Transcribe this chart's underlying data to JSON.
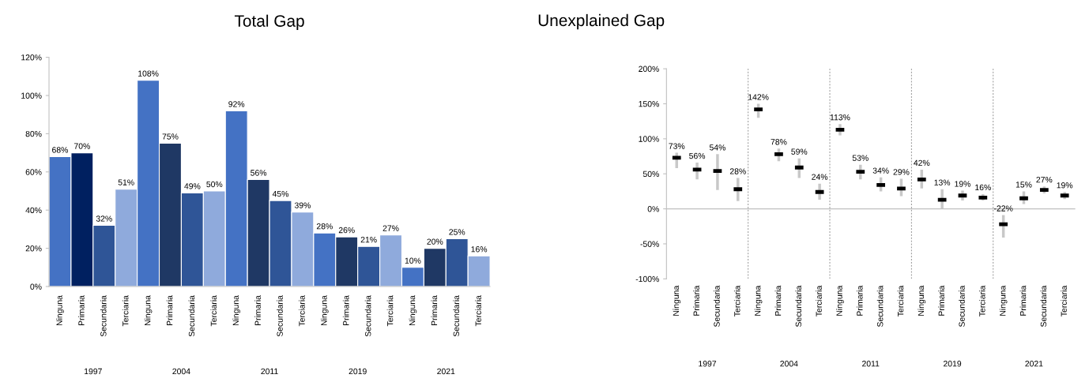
{
  "chart_data": [
    {
      "type": "bar",
      "title": "Total Gap",
      "categories": [
        "Ninguna",
        "Primaria",
        "Secundaria",
        "Terciaria",
        "Ninguna",
        "Primaria",
        "Secundaria",
        "Terciaria",
        "Ninguna",
        "Primaria",
        "Secundaria",
        "Terciaria",
        "Ninguna",
        "Primaria",
        "Secundaria",
        "Terciaria",
        "Ninguna",
        "Primaria",
        "Secundaria",
        "Terciaria"
      ],
      "values": [
        68,
        70,
        32,
        51,
        108,
        75,
        49,
        50,
        92,
        56,
        45,
        39,
        28,
        26,
        21,
        27,
        10,
        20,
        25,
        16
      ],
      "colors": [
        "#4472c4",
        "#002060",
        "#2f5597",
        "#8faadc",
        "#4472c4",
        "#1f3864",
        "#2f5597",
        "#8faadc",
        "#4472c4",
        "#1f3864",
        "#2f5597",
        "#8faadc",
        "#4472c4",
        "#1f3864",
        "#2f5597",
        "#8faadc",
        "#4472c4",
        "#1f3864",
        "#2f5597",
        "#8faadc"
      ],
      "ylim": [
        0,
        120
      ],
      "yticks": [
        {
          "value": 0,
          "label": "0%"
        },
        {
          "value": 20,
          "label": "20%"
        },
        {
          "value": 40,
          "label": "40%"
        },
        {
          "value": 60,
          "label": "60%"
        },
        {
          "value": 80,
          "label": "80%"
        },
        {
          "value": 100,
          "label": "100%"
        },
        {
          "value": 120,
          "label": "120%"
        }
      ],
      "value_labels": [
        "68%",
        "70%",
        "32%",
        "51%",
        "108%",
        "75%",
        "49%",
        "50%",
        "92%",
        "56%",
        "45%",
        "39%",
        "28%",
        "26%",
        "21%",
        "27%",
        "10%",
        "20%",
        "25%",
        "16%"
      ],
      "annotations": [
        "1997",
        "2004",
        "2011",
        "2019",
        "2021"
      ],
      "grid": false,
      "legend": false
    },
    {
      "type": "scatter",
      "title": "Unexplained Gap",
      "categories": [
        "Ninguna",
        "Primaria",
        "Secundaria",
        "Terciaria",
        "Ninguna",
        "Primaria",
        "Secundaria",
        "Terciaria",
        "Ninguna",
        "Primaria",
        "Secundaria",
        "Terciaria",
        "Ninguna",
        "Primaria",
        "Secundaria",
        "Terciaria",
        "Ninguna",
        "Primaria",
        "Secundaria",
        "Terciaria"
      ],
      "series": [
        {
          "color": "#000000",
          "values": [
            73,
            56,
            54,
            28,
            142,
            78,
            59,
            24,
            113,
            53,
            34,
            29,
            42,
            13,
            19,
            16,
            -22,
            15,
            27,
            19
          ],
          "errors": [
            [
              58,
              80
            ],
            [
              42,
              66
            ],
            [
              27,
              78
            ],
            [
              11,
              44
            ],
            [
              130,
              150
            ],
            [
              68,
              86
            ],
            [
              44,
              72
            ],
            [
              13,
              36
            ],
            [
              105,
              121
            ],
            [
              42,
              63
            ],
            [
              25,
              45
            ],
            [
              18,
              43
            ],
            [
              29,
              56
            ],
            [
              0,
              28
            ],
            [
              12,
              26
            ],
            [
              12,
              21
            ],
            [
              -41,
              -9
            ],
            [
              7,
              25
            ],
            [
              22,
              32
            ],
            [
              14,
              24
            ]
          ],
          "value_labels": [
            "73%",
            "56%",
            "54%",
            "28%",
            "142%",
            "78%",
            "59%",
            "24%",
            "113%",
            "53%",
            "34%",
            "29%",
            "42%",
            "13%",
            "19%",
            "16%",
            "-22%",
            "15%",
            "27%",
            "19%"
          ]
        }
      ],
      "ylim": [
        -100,
        200
      ],
      "yticks": [
        {
          "value": -100,
          "label": "-100%"
        },
        {
          "value": -50,
          "label": "-50%"
        },
        {
          "value": 0,
          "label": "0%"
        },
        {
          "value": 50,
          "label": "50%"
        },
        {
          "value": 100,
          "label": "100%"
        },
        {
          "value": 150,
          "label": "150%"
        },
        {
          "value": 200,
          "label": "200%"
        }
      ],
      "annotations": [
        "1997",
        "2004",
        "2011",
        "2019",
        "2021"
      ],
      "grid": false,
      "legend": false
    }
  ]
}
